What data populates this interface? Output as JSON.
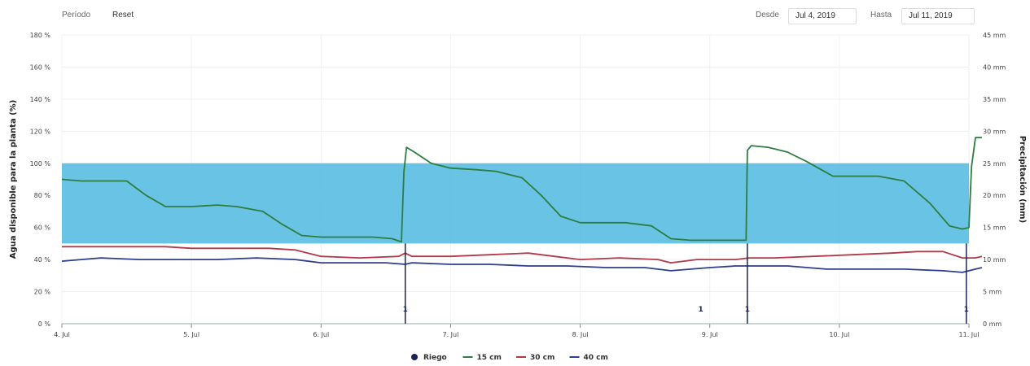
{
  "toolbar": {
    "period_label": "Período",
    "reset_label": "Reset",
    "from_label": "Desde",
    "from_value": "Jul 4, 2019",
    "to_label": "Hasta",
    "to_value": "Jul 11, 2019"
  },
  "chart_data": {
    "type": "line",
    "title": "",
    "ylabel": "Agua disponible para la planta (%)",
    "y2label": "Precipitación (mm)",
    "ylim": [
      0,
      180
    ],
    "y2lim": [
      0,
      45
    ],
    "y_ticks": [
      "0 %",
      "20 %",
      "40 %",
      "60 %",
      "80 %",
      "100 %",
      "120 %",
      "140 %",
      "160 %",
      "180 %"
    ],
    "y2_ticks": [
      "0 mm",
      "5 mm",
      "10 mm",
      "15 mm",
      "20 mm",
      "25 mm",
      "30 mm",
      "35 mm",
      "40 mm",
      "45 mm"
    ],
    "x_ticks": [
      "4. Jul",
      "5. Jul",
      "6. Jul",
      "7. Jul",
      "8. Jul",
      "9. Jul",
      "10. Jul",
      "11. Jul"
    ],
    "xlim": [
      4,
      11
    ],
    "optimal_band": [
      50,
      100
    ],
    "band_color": "#4fb8df",
    "legend_position": "bottom-center",
    "series": [
      {
        "name": "15 cm",
        "color": "#2e7d3f",
        "x": [
          4,
          4.15,
          4.3,
          4.5,
          4.65,
          4.8,
          5.0,
          5.2,
          5.35,
          5.55,
          5.7,
          5.85,
          6.0,
          6.2,
          6.4,
          6.55,
          6.62,
          6.64,
          6.66,
          6.72,
          6.85,
          7.0,
          7.2,
          7.35,
          7.55,
          7.7,
          7.85,
          8.0,
          8.2,
          8.35,
          8.55,
          8.7,
          8.85,
          9.0,
          9.2,
          9.28,
          9.29,
          9.32,
          9.45,
          9.6,
          9.75,
          9.95,
          10.15,
          10.3,
          10.5,
          10.7,
          10.85,
          10.95,
          11.0,
          11.02,
          11.05,
          11.1
        ],
        "values": [
          90,
          89,
          89,
          89,
          80,
          73,
          73,
          74,
          73,
          70,
          62,
          55,
          54,
          54,
          54,
          53,
          51,
          95,
          110,
          107,
          100,
          97,
          96,
          95,
          91,
          80,
          67,
          63,
          63,
          63,
          61,
          53,
          52,
          52,
          52,
          52,
          108,
          111,
          110,
          107,
          101,
          92,
          92,
          92,
          89,
          75,
          61,
          59,
          60,
          98,
          116,
          116
        ]
      },
      {
        "name": "30 cm",
        "color": "#b23a48",
        "x": [
          4,
          4.2,
          4.5,
          4.8,
          5.0,
          5.3,
          5.6,
          5.8,
          6.0,
          6.3,
          6.6,
          6.65,
          6.7,
          7.0,
          7.3,
          7.6,
          7.8,
          8.0,
          8.3,
          8.6,
          8.7,
          8.9,
          9.2,
          9.3,
          9.5,
          9.8,
          10.1,
          10.4,
          10.6,
          10.8,
          10.95,
          11.05,
          11.1
        ],
        "values": [
          48,
          48,
          48,
          48,
          47,
          47,
          47,
          46,
          42,
          41,
          42,
          44,
          42,
          42,
          43,
          44,
          42,
          40,
          41,
          40,
          38,
          40,
          40,
          41,
          41,
          42,
          43,
          44,
          45,
          45,
          41,
          41,
          42
        ]
      },
      {
        "name": "40 cm",
        "color": "#2e3f8f",
        "x": [
          4,
          4.3,
          4.6,
          4.9,
          5.2,
          5.5,
          5.8,
          6.0,
          6.2,
          6.5,
          6.65,
          6.7,
          7.0,
          7.3,
          7.6,
          7.9,
          8.2,
          8.5,
          8.7,
          9.0,
          9.2,
          9.4,
          9.6,
          9.9,
          10.2,
          10.5,
          10.8,
          10.95,
          11.05,
          11.1
        ],
        "values": [
          39,
          41,
          40,
          40,
          40,
          41,
          40,
          38,
          38,
          38,
          37,
          38,
          37,
          37,
          36,
          36,
          35,
          35,
          33,
          35,
          36,
          36,
          36,
          34,
          34,
          34,
          33,
          32,
          34,
          35
        ]
      }
    ],
    "riego": {
      "name": "Riego",
      "color": "#1a2456",
      "x": [
        6.65,
        8.93,
        9.29,
        10.98
      ],
      "labels": [
        "1",
        "1",
        "1",
        "1"
      ]
    },
    "precip_spikes_x": [
      6.65,
      9.29,
      10.98
    ]
  }
}
